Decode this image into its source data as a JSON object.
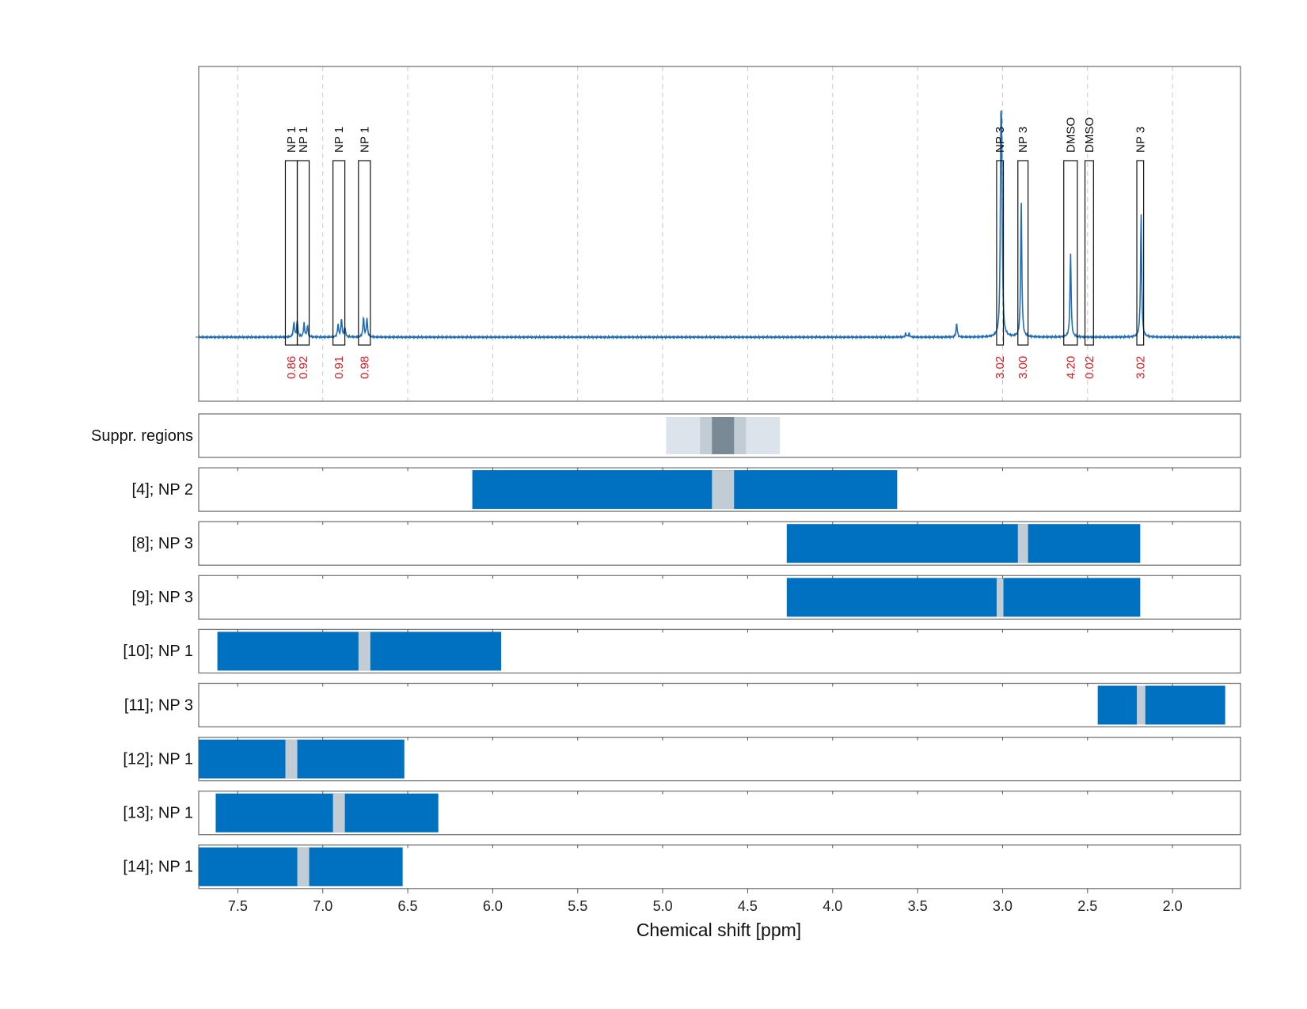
{
  "chart_data": {
    "type": "nmr-spectrum-with-range-bars",
    "xlabel": "Chemical shift [ppm]",
    "xlim": [
      7.73,
      1.6
    ],
    "x_axis_reversed": true,
    "x_ticks": [
      7.5,
      7.0,
      6.5,
      6.0,
      5.5,
      5.0,
      4.5,
      4.0,
      3.5,
      3.0,
      2.5,
      2.0
    ],
    "x_tick_labels": [
      "7.5",
      "7.0",
      "6.5",
      "6.0",
      "5.5",
      "5.0",
      "4.5",
      "4.0",
      "3.5",
      "3.0",
      "2.5",
      "2.0"
    ],
    "grid": "vertical dashed",
    "spectrum": {
      "color": "#1f6fb8",
      "baseline_ppm_range": [
        7.73,
        1.6
      ],
      "peaks": [
        {
          "ppm": 7.17,
          "height": 0.06
        },
        {
          "ppm": 7.15,
          "height": 0.065
        },
        {
          "ppm": 7.11,
          "height": 0.055
        },
        {
          "ppm": 7.09,
          "height": 0.045
        },
        {
          "ppm": 6.91,
          "height": 0.05
        },
        {
          "ppm": 6.89,
          "height": 0.075
        },
        {
          "ppm": 6.87,
          "height": 0.04
        },
        {
          "ppm": 6.76,
          "height": 0.08
        },
        {
          "ppm": 6.74,
          "height": 0.075
        },
        {
          "ppm": 3.57,
          "height": 0.015
        },
        {
          "ppm": 3.55,
          "height": 0.015
        },
        {
          "ppm": 3.27,
          "height": 0.055
        },
        {
          "ppm": 3.01,
          "height": 0.68
        },
        {
          "ppm": 3.005,
          "height": 0.6
        },
        {
          "ppm": 2.89,
          "height": 0.55
        },
        {
          "ppm": 2.6,
          "height": 0.34
        },
        {
          "ppm": 2.185,
          "height": 0.5
        }
      ]
    },
    "annotations": [
      {
        "label": "NP 1",
        "ppm_range": [
          7.22,
          7.15
        ],
        "integral": "0.86"
      },
      {
        "label": "NP 1",
        "ppm_range": [
          7.15,
          7.08
        ],
        "integral": "0.92"
      },
      {
        "label": "NP 1",
        "ppm_range": [
          6.94,
          6.87
        ],
        "integral": "0.91"
      },
      {
        "label": "NP 1",
        "ppm_range": [
          6.79,
          6.72
        ],
        "integral": "0.98"
      },
      {
        "label": "NP 3",
        "ppm_range": [
          3.035,
          2.995
        ],
        "integral": "3.02"
      },
      {
        "label": "NP 3",
        "ppm_range": [
          2.91,
          2.85
        ],
        "integral": "3.00"
      },
      {
        "label": "DMSO",
        "ppm_range": [
          2.64,
          2.56
        ],
        "integral": "4.20"
      },
      {
        "label": "DMSO",
        "ppm_range": [
          2.515,
          2.465
        ],
        "integral": "0.02"
      },
      {
        "label": "NP 3",
        "ppm_range": [
          2.21,
          2.17
        ],
        "integral": "3.02"
      }
    ],
    "suppression_row": {
      "label": "Suppr. regions",
      "regions": [
        {
          "ppm_range": [
            4.98,
            4.31
          ],
          "color": "#dde3ea"
        },
        {
          "ppm_range": [
            4.78,
            4.51
          ],
          "color": "#c2ccd4"
        },
        {
          "ppm_range": [
            4.71,
            4.58
          ],
          "color": "#7a8996"
        }
      ]
    },
    "range_rows": [
      {
        "label": "[4]; NP 2",
        "bar": [
          6.12,
          3.62
        ],
        "marker": [
          4.71,
          4.58
        ]
      },
      {
        "label": "[8]; NP 3",
        "bar": [
          4.27,
          2.19
        ],
        "marker": [
          2.91,
          2.85
        ]
      },
      {
        "label": "[9]; NP 3",
        "bar": [
          4.27,
          2.19
        ],
        "marker": [
          3.035,
          2.995
        ]
      },
      {
        "label": "[10]; NP 1",
        "bar": [
          7.62,
          5.95
        ],
        "marker": [
          6.79,
          6.72
        ]
      },
      {
        "label": "[11]; NP 3",
        "bar": [
          2.44,
          1.69
        ],
        "marker": [
          2.21,
          2.16
        ]
      },
      {
        "label": "[12]; NP 1",
        "bar": [
          7.73,
          6.52
        ],
        "marker": [
          7.22,
          7.15
        ]
      },
      {
        "label": "[13]; NP 1",
        "bar": [
          7.63,
          6.32
        ],
        "marker": [
          6.94,
          6.87
        ]
      },
      {
        "label": "[14]; NP 1",
        "bar": [
          7.73,
          6.53
        ],
        "marker": [
          7.15,
          7.08
        ]
      }
    ],
    "bar_color": "#0070c0",
    "marker_color": "#c2ccd4"
  }
}
